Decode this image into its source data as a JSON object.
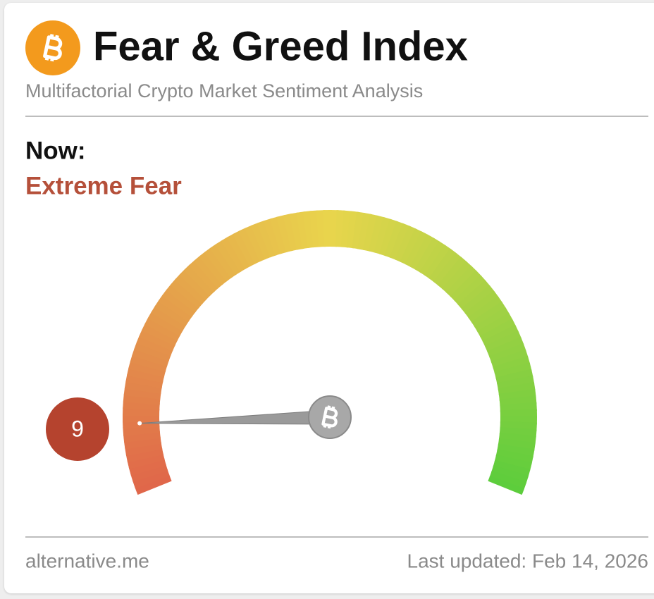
{
  "header": {
    "title": "Fear & Greed Index",
    "subtitle": "Multifactorial Crypto Market Sentiment Analysis"
  },
  "now": {
    "label": "Now:",
    "classification": "Extreme Fear"
  },
  "gauge": {
    "value": 9,
    "lim": [
      0,
      100
    ]
  },
  "footer": {
    "source": "alternative.me",
    "updated": "Last updated: Feb 14, 2026"
  }
}
